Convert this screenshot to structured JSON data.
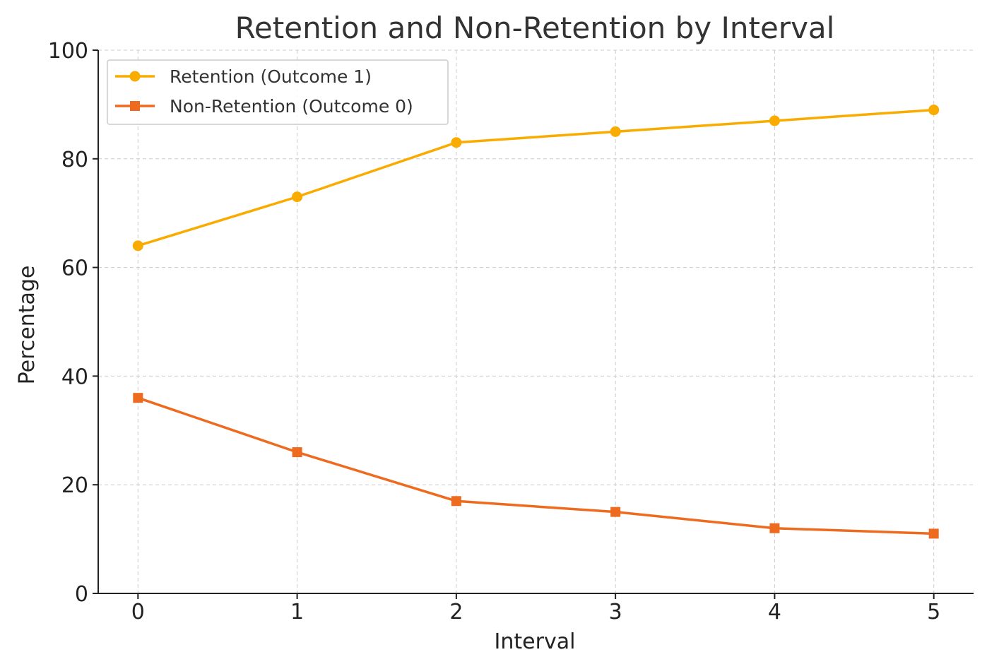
{
  "chart_data": {
    "type": "line",
    "title": "Retention and Non-Retention by Interval",
    "xlabel": "Interval",
    "ylabel": "Percentage",
    "x": [
      0,
      1,
      2,
      3,
      4,
      5
    ],
    "xlim": [
      -0.25,
      5.25
    ],
    "ylim": [
      0,
      100
    ],
    "xticks": [
      "0",
      "1",
      "2",
      "3",
      "4",
      "5"
    ],
    "yticks": [
      "0",
      "20",
      "40",
      "60",
      "80",
      "100"
    ],
    "grid": true,
    "legend_position": "top-left",
    "series": [
      {
        "name": "Retention (Outcome 1)",
        "values": [
          64,
          73,
          83,
          85,
          87,
          89
        ],
        "color": "#f9ab00",
        "marker": "circle"
      },
      {
        "name": "Non-Retention (Outcome 0)",
        "values": [
          36,
          26,
          17,
          15,
          12,
          11
        ],
        "color": "#ee6a1e",
        "marker": "square"
      }
    ]
  }
}
